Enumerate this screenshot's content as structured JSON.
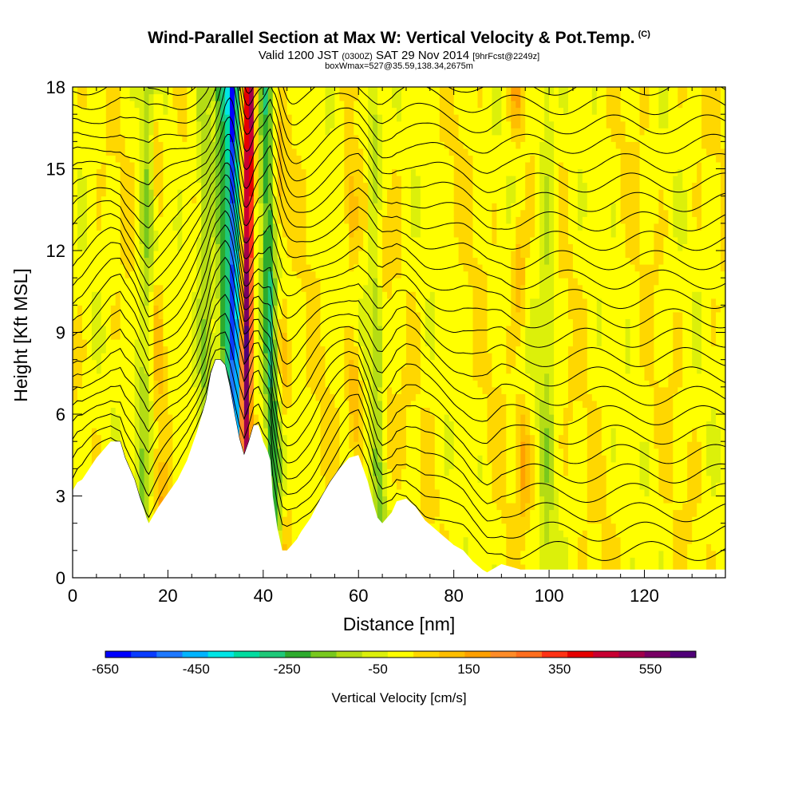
{
  "header": {
    "title": "Wind-Parallel Section at Max W: Vertical Velocity & Pot.Temp.",
    "title_tag": "(C)",
    "valid_prefix": "Valid 1200 JST",
    "valid_utc": "(0300Z)",
    "valid_date": "SAT 29 Nov 2014",
    "forecast": "[9hrFcst@2249z]",
    "box_info": "boxWmax=527@35.59,138.34,2675m"
  },
  "colors": {
    "background": "#ffffff",
    "terrain": "#ffffff",
    "contour": "#000000",
    "colorbar": [
      "#0000ff",
      "#0a3cff",
      "#1e78ff",
      "#00b4ff",
      "#00e6e6",
      "#00dca0",
      "#1ec878",
      "#2daa2d",
      "#78c81e",
      "#b4dc14",
      "#dcf00a",
      "#ffff00",
      "#ffd700",
      "#ffbe00",
      "#ffa000",
      "#ff8c28",
      "#ff6e1e",
      "#ff3214",
      "#e60000",
      "#c80032",
      "#a0004b",
      "#780064",
      "#500078"
    ]
  },
  "chart_data": {
    "type": "heatmap",
    "xlabel": "Distance [nm]",
    "ylabel": "Height [Kft MSL]",
    "xlim": [
      0,
      137
    ],
    "ylim": [
      0,
      18
    ],
    "xticks": [
      "0",
      "20",
      "40",
      "60",
      "80",
      "100",
      "120"
    ],
    "yticks": [
      "0",
      "3",
      "6",
      "9",
      "12",
      "15",
      "18"
    ],
    "colorbar_label": "Vertical Velocity [cm/s]",
    "colorbar_range": [
      -650,
      650
    ],
    "colorbar_tick_labels": [
      "-650",
      "-450",
      "-250",
      "-50",
      "150",
      "350",
      "550"
    ],
    "terrain_profile": {
      "x": [
        0,
        1,
        2,
        5,
        8,
        10,
        11,
        13,
        14,
        15,
        15.5,
        16,
        17,
        18,
        20,
        22,
        24,
        26,
        28,
        29,
        30,
        31,
        32,
        33,
        34,
        35,
        36,
        37,
        38,
        39,
        40,
        41,
        41.5,
        42,
        43,
        44,
        45,
        46,
        47,
        48,
        50,
        52,
        54,
        56,
        58,
        60,
        61,
        62,
        63,
        64,
        65,
        66,
        67,
        68,
        70,
        72,
        74,
        76,
        78,
        80,
        82,
        84,
        86,
        87,
        88,
        90,
        92,
        94,
        96,
        98,
        100,
        102,
        104,
        106,
        108,
        110,
        115,
        120,
        125,
        130,
        137
      ],
      "y": [
        3.2,
        3.5,
        3.6,
        4.4,
        5.0,
        5.0,
        4.4,
        3.6,
        3.0,
        2.5,
        2.2,
        2.0,
        2.3,
        2.6,
        3.1,
        3.6,
        4.3,
        5.3,
        6.5,
        7.5,
        8.0,
        8.0,
        7.8,
        7.0,
        6.0,
        5.1,
        4.5,
        5.0,
        5.6,
        5.6,
        5.0,
        4.6,
        4.3,
        3.0,
        1.8,
        1.0,
        1.0,
        1.2,
        1.4,
        1.7,
        2.2,
        2.9,
        3.5,
        4.0,
        4.4,
        4.5,
        4.0,
        3.5,
        2.8,
        2.2,
        2.0,
        2.2,
        2.4,
        2.8,
        2.9,
        2.6,
        2.1,
        1.8,
        1.5,
        1.2,
        1.0,
        0.6,
        0.3,
        0.2,
        0.3,
        0.5,
        0.4,
        0.3,
        0.3,
        0.3,
        0.3,
        0.3,
        0.3,
        0.3,
        0.3,
        0.3,
        0.3,
        0.3,
        0.3,
        0.3,
        0.3
      ]
    },
    "updraft_cores": [
      {
        "x_top": 37.2,
        "x_bottom": 35.8,
        "w": 550
      },
      {
        "x_top": 33.5,
        "x_bottom": 34.5,
        "w": -550
      },
      {
        "x_top": 40.5,
        "x_bottom": 42.5,
        "w": -250
      },
      {
        "x_top": 31.0,
        "x_bottom": 33.0,
        "w": -250
      },
      {
        "x_top": 27.5,
        "x_bottom": 28.5,
        "w": -150
      },
      {
        "x_top": 16.0,
        "x_bottom": 14.5,
        "w": -150
      },
      {
        "x_top": 63.5,
        "x_bottom": 64.5,
        "w": -150
      },
      {
        "x_top": 99.5,
        "x_bottom": 99.5,
        "w": -100
      }
    ]
  }
}
